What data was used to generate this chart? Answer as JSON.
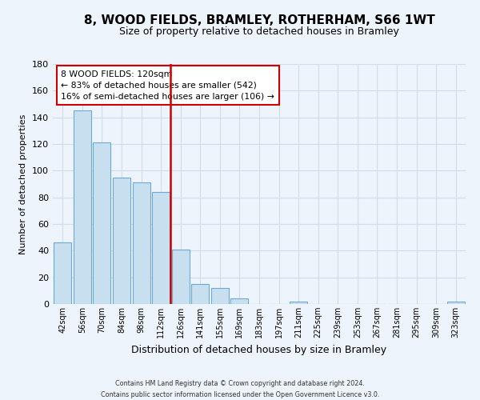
{
  "title": "8, WOOD FIELDS, BRAMLEY, ROTHERHAM, S66 1WT",
  "subtitle": "Size of property relative to detached houses in Bramley",
  "xlabel": "Distribution of detached houses by size in Bramley",
  "ylabel": "Number of detached properties",
  "bar_labels": [
    "42sqm",
    "56sqm",
    "70sqm",
    "84sqm",
    "98sqm",
    "112sqm",
    "126sqm",
    "141sqm",
    "155sqm",
    "169sqm",
    "183sqm",
    "197sqm",
    "211sqm",
    "225sqm",
    "239sqm",
    "253sqm",
    "267sqm",
    "281sqm",
    "295sqm",
    "309sqm",
    "323sqm"
  ],
  "bar_values": [
    46,
    145,
    121,
    95,
    91,
    84,
    41,
    15,
    12,
    4,
    0,
    0,
    2,
    0,
    0,
    0,
    0,
    0,
    0,
    0,
    2
  ],
  "bar_color": "#c8dff0",
  "bar_edge_color": "#6aaad4",
  "vline_x": 6.0,
  "vline_color": "#cc0000",
  "annotation_text": "8 WOOD FIELDS: 120sqm\n← 83% of detached houses are smaller (542)\n16% of semi-detached houses are larger (106) →",
  "annotation_box_color": "#ffffff",
  "annotation_box_edge": "#cc0000",
  "ylim": [
    0,
    180
  ],
  "yticks": [
    0,
    20,
    40,
    60,
    80,
    100,
    120,
    140,
    160,
    180
  ],
  "footer_line1": "Contains HM Land Registry data © Crown copyright and database right 2024.",
  "footer_line2": "Contains public sector information licensed under the Open Government Licence v3.0.",
  "bg_color": "#eef4fb",
  "grid_color": "#d0dce8"
}
